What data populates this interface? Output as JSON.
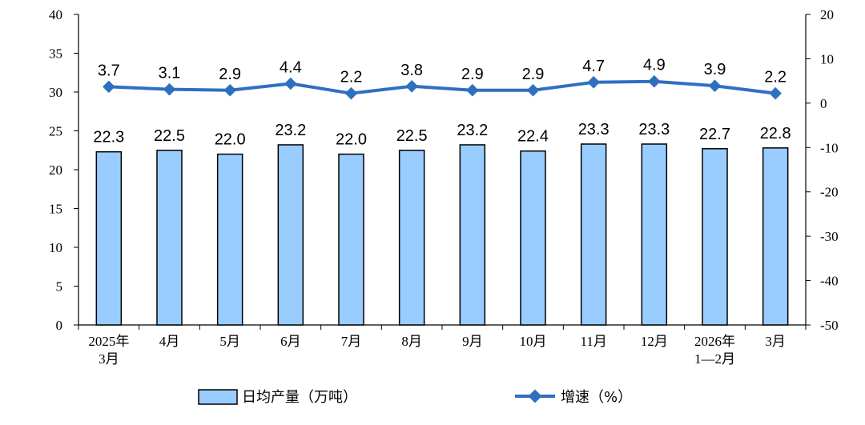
{
  "chart_data": {
    "type": "bar",
    "categories": [
      [
        "2025年",
        "3月"
      ],
      [
        "4月"
      ],
      [
        "5月"
      ],
      [
        "6月"
      ],
      [
        "7月"
      ],
      [
        "8月"
      ],
      [
        "9月"
      ],
      [
        "10月"
      ],
      [
        "11月"
      ],
      [
        "12月"
      ],
      [
        "2026年",
        "1—2月"
      ],
      [
        "3月"
      ]
    ],
    "series": [
      {
        "name": "日均产量（万吨）",
        "type": "bar",
        "axis": "left",
        "values": [
          22.3,
          22.5,
          22.0,
          23.2,
          22.0,
          22.5,
          23.2,
          22.4,
          23.3,
          23.3,
          22.7,
          22.8
        ],
        "labels": [
          "22.3",
          "22.5",
          "22.0",
          "23.2",
          "22.0",
          "22.5",
          "23.2",
          "22.4",
          "23.3",
          "23.3",
          "22.7",
          "22.8"
        ],
        "color": "#99ccff"
      },
      {
        "name": "增速（%）",
        "type": "line",
        "axis": "right",
        "values": [
          3.7,
          3.1,
          2.9,
          4.4,
          2.2,
          3.8,
          2.9,
          2.9,
          4.7,
          4.9,
          3.9,
          2.2
        ],
        "labels": [
          "3.7",
          "3.1",
          "2.9",
          "4.4",
          "2.2",
          "3.8",
          "2.9",
          "2.9",
          "4.7",
          "4.9",
          "3.9",
          "2.2"
        ],
        "color": "#2f6fc0"
      }
    ],
    "y_left": {
      "min": 0,
      "max": 40,
      "step": 5
    },
    "y_right": {
      "min": -50,
      "max": 20,
      "step": 10
    },
    "grid": false,
    "legend_position": "bottom"
  }
}
